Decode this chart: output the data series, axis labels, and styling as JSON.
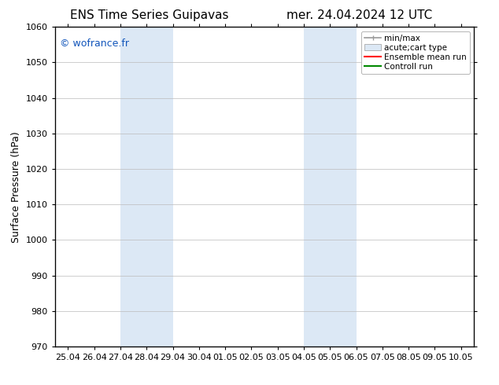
{
  "title_left": "ENS Time Series Guipavas",
  "title_right": "mer. 24.04.2024 12 UTC",
  "ylabel": "Surface Pressure (hPa)",
  "ylim": [
    970,
    1060
  ],
  "yticks": [
    970,
    980,
    990,
    1000,
    1010,
    1020,
    1030,
    1040,
    1050,
    1060
  ],
  "xtick_labels": [
    "25.04",
    "26.04",
    "27.04",
    "28.04",
    "29.04",
    "30.04",
    "01.05",
    "02.05",
    "03.05",
    "04.05",
    "05.05",
    "06.05",
    "07.05",
    "08.05",
    "09.05",
    "10.05"
  ],
  "shaded_bands": [
    {
      "xstart": 2.0,
      "xend": 4.0
    },
    {
      "xstart": 9.0,
      "xend": 11.0
    }
  ],
  "shaded_color": "#dce8f5",
  "background_color": "#ffffff",
  "watermark": "© wofrance.fr",
  "watermark_color": "#1155bb",
  "legend_items": [
    {
      "label": "min/max",
      "color": "#999999",
      "lw": 1.2
    },
    {
      "label": "acute;cart type",
      "facecolor": "#dce8f5",
      "edgecolor": "#999999"
    },
    {
      "label": "Ensemble mean run",
      "color": "#ff0000",
      "lw": 1.5
    },
    {
      "label": "Controll run",
      "color": "#008800",
      "lw": 1.5
    }
  ],
  "font_size_title": 11,
  "font_size_tick": 8,
  "font_size_ylabel": 9,
  "font_size_legend": 7.5,
  "font_size_watermark": 9
}
